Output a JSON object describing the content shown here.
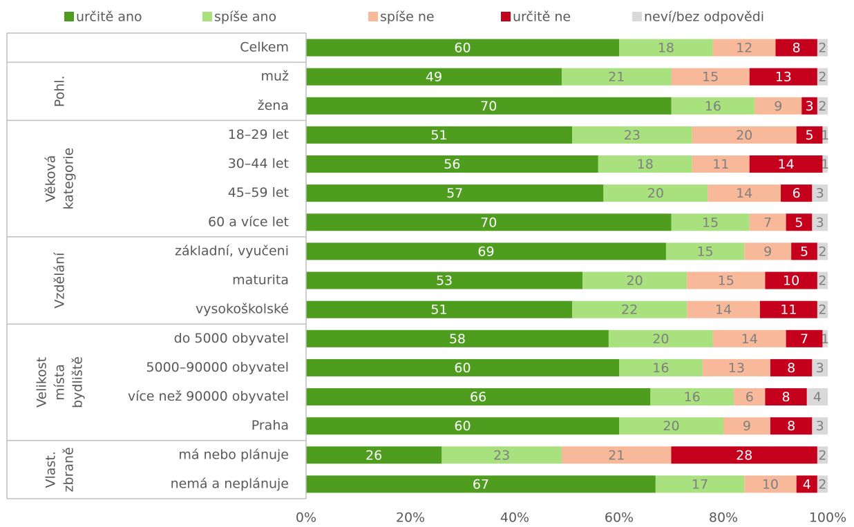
{
  "chart_data": {
    "type": "bar",
    "orientation": "horizontal",
    "stacked": true,
    "categories": [
      "Celkem",
      "muž",
      "žena",
      "18–29 let",
      "30–44 let",
      "45–59 let",
      "60 a více let",
      "základní, vyučeni",
      "maturita",
      "vysokoškolské",
      "do 5000 obyvatel",
      "5000–90000 obyvatel",
      "více než 90000 obyvatel",
      "Praha",
      "má nebo plánuje",
      "nemá a neplánuje"
    ],
    "groups": [
      {
        "lines": [
          "Pohl."
        ],
        "start": 1,
        "end": 2
      },
      {
        "lines": [
          "Věková",
          "kategorie"
        ],
        "start": 3,
        "end": 6
      },
      {
        "lines": [
          "Vzdělání"
        ],
        "start": 7,
        "end": 9
      },
      {
        "lines": [
          "Velikost",
          "místa",
          "bydliště"
        ],
        "start": 10,
        "end": 13
      },
      {
        "lines": [
          "Vlast.",
          "zbraně"
        ],
        "start": 14,
        "end": 15
      }
    ],
    "series": [
      {
        "name": "určitě ano",
        "color": "#4e9d1f",
        "label_color": "#ffffff",
        "values": [
          60,
          49,
          70,
          51,
          56,
          57,
          70,
          69,
          53,
          51,
          58,
          60,
          66,
          60,
          26,
          67
        ]
      },
      {
        "name": "spíše ano",
        "color": "#a9e17f",
        "label_color": "#7f7f7f",
        "values": [
          18,
          21,
          16,
          23,
          18,
          20,
          15,
          15,
          20,
          22,
          20,
          16,
          16,
          20,
          23,
          17
        ]
      },
      {
        "name": "spíše ne",
        "color": "#f8b99b",
        "label_color": "#7f7f7f",
        "values": [
          12,
          15,
          9,
          20,
          11,
          14,
          7,
          9,
          15,
          14,
          14,
          13,
          6,
          9,
          21,
          10
        ]
      },
      {
        "name": "určitě ne",
        "color": "#c5001c",
        "label_color": "#ffffff",
        "values": [
          8,
          13,
          3,
          5,
          14,
          6,
          5,
          5,
          10,
          11,
          7,
          8,
          8,
          8,
          28,
          4
        ]
      },
      {
        "name": "neví/bez odpovědi",
        "color": "#d9d9d9",
        "label_color": "#7f7f7f",
        "values": [
          2,
          2,
          2,
          1,
          1,
          3,
          3,
          2,
          2,
          2,
          1,
          3,
          4,
          3,
          2,
          2
        ]
      }
    ],
    "xlim": [
      0,
      100
    ],
    "xticks": [
      {
        "value": 0,
        "label": "0%"
      },
      {
        "value": 20,
        "label": "20%"
      },
      {
        "value": 40,
        "label": "40%"
      },
      {
        "value": 60,
        "label": "60%"
      },
      {
        "value": 80,
        "label": "80%"
      },
      {
        "value": 100,
        "label": "100%"
      }
    ],
    "legend": "top"
  }
}
